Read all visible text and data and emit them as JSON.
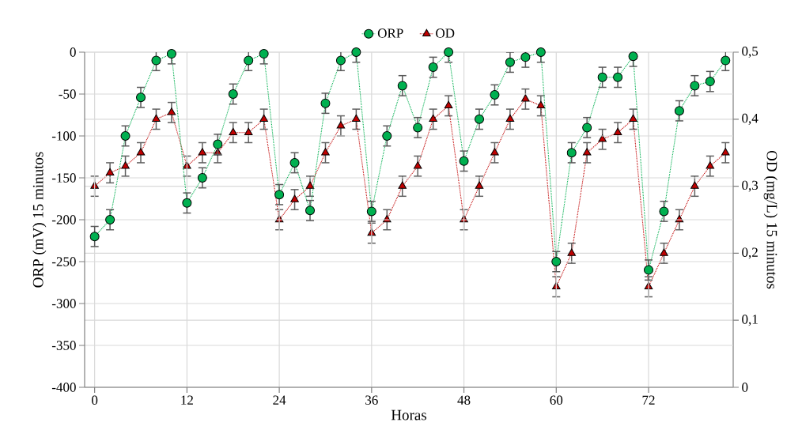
{
  "chart_data": {
    "type": "line",
    "xlabel": "Horas",
    "ylabel": "ORP (mV) 15 minutos",
    "y2label": "OD (mg/L) 15 minutos",
    "x": [
      0,
      2,
      4,
      6,
      8,
      10,
      12,
      14,
      16,
      18,
      20,
      22,
      24,
      26,
      28,
      30,
      32,
      34,
      36,
      38,
      40,
      42,
      44,
      46,
      48,
      50,
      52,
      54,
      56,
      58,
      60,
      62,
      64,
      66,
      68,
      70,
      72,
      74,
      76,
      78,
      80,
      82
    ],
    "series": [
      {
        "name": "ORP",
        "color": "#00b050",
        "marker": "circle",
        "values": [
          -220,
          -200,
          -100,
          -54,
          -10,
          -2,
          -180,
          -150,
          -110,
          -50,
          -10,
          -2,
          -170,
          -132,
          -189,
          -61,
          -10,
          0,
          -190,
          -100,
          -40,
          -90,
          -18,
          0,
          -130,
          -80,
          -51,
          -12,
          -6,
          0,
          -250,
          -120,
          -90,
          -30,
          -30,
          -5,
          -260,
          -190,
          -70,
          -40,
          -35,
          -10
        ],
        "errors": [
          12,
          12,
          12,
          12,
          12,
          12,
          12,
          12,
          12,
          12,
          12,
          12,
          12,
          12,
          12,
          12,
          12,
          12,
          12,
          12,
          12,
          12,
          12,
          12,
          12,
          12,
          12,
          12,
          12,
          12,
          12,
          12,
          12,
          12,
          12,
          12,
          12,
          12,
          12,
          12,
          12,
          12
        ]
      },
      {
        "name": "OD",
        "color": "#c00000",
        "marker": "triangle",
        "axis": "y2",
        "values": [
          0.3,
          0.32,
          0.33,
          0.35,
          0.4,
          0.41,
          0.33,
          0.35,
          0.35,
          0.38,
          0.38,
          0.4,
          0.25,
          0.28,
          0.3,
          0.35,
          0.39,
          0.4,
          0.23,
          0.25,
          0.3,
          0.33,
          0.4,
          0.42,
          0.25,
          0.3,
          0.35,
          0.4,
          0.43,
          0.42,
          0.15,
          0.2,
          0.35,
          0.37,
          0.38,
          0.4,
          0.15,
          0.2,
          0.25,
          0.3,
          0.33,
          0.35
        ],
        "errors": [
          0.015,
          0.015,
          0.015,
          0.015,
          0.015,
          0.015,
          0.015,
          0.015,
          0.015,
          0.015,
          0.015,
          0.015,
          0.015,
          0.015,
          0.015,
          0.015,
          0.015,
          0.015,
          0.015,
          0.015,
          0.015,
          0.015,
          0.015,
          0.015,
          0.015,
          0.015,
          0.015,
          0.015,
          0.015,
          0.015,
          0.015,
          0.015,
          0.015,
          0.015,
          0.015,
          0.015,
          0.015,
          0.015,
          0.015,
          0.015,
          0.015,
          0.015
        ]
      }
    ],
    "xlim": [
      -1.3,
      83
    ],
    "xticks": [
      0,
      12,
      24,
      36,
      48,
      60,
      72
    ],
    "ylim": [
      -400,
      0
    ],
    "yticks": [
      -400,
      -350,
      -300,
      -250,
      -200,
      -150,
      -100,
      -50,
      0
    ],
    "y2lim": [
      0,
      0.5
    ],
    "y2ticks": [
      0,
      {
        "value": 0.1,
        "label": "0,1"
      },
      {
        "value": 0.2,
        "label": "0,2"
      },
      {
        "value": 0.3,
        "label": "0,3"
      },
      {
        "value": 0.4,
        "label": "0,4"
      },
      {
        "value": 0.5,
        "label": "0,5"
      }
    ],
    "grid": true,
    "legend": "top",
    "line_style": "dotted"
  }
}
